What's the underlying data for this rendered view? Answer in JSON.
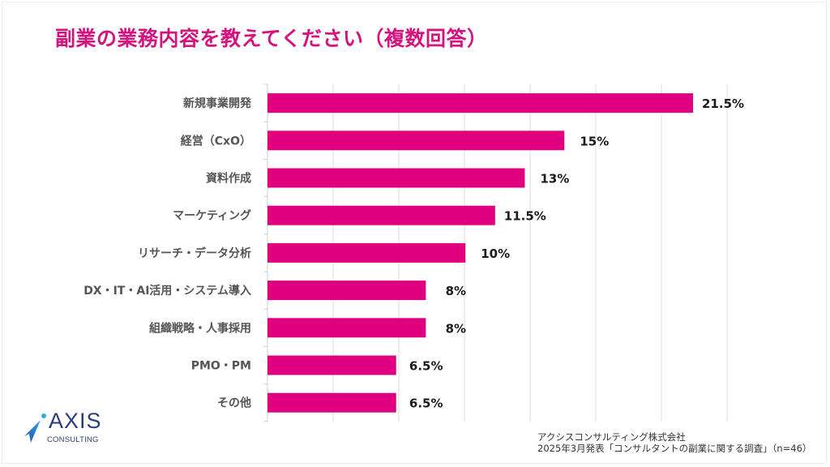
{
  "title": "副業の業務内容を教えてください（複数回答）",
  "colors": {
    "title": "#d6127f",
    "bar": "#e0007f",
    "grid": "#dcdcdc",
    "logo_text": "#2a3e78",
    "logo_mark": "#1e6fc8"
  },
  "chart_data": {
    "type": "bar",
    "orientation": "horizontal",
    "title": "副業の業務内容を教えてください（複数回答）",
    "xlabel": "",
    "ylabel": "",
    "grid": true,
    "xlim": [
      0,
      26.4
    ],
    "categories": [
      "新規事業開発",
      "経営（CxO）",
      "資料作成",
      "マーケティング",
      "リサーチ・データ分析",
      "DX・IT・AI活用・システム導入",
      "組織戦略・人事採用",
      "PMO・PM",
      "その他"
    ],
    "values": [
      21.5,
      15,
      13,
      11.5,
      10,
      8,
      8,
      6.5,
      6.5
    ],
    "value_labels": [
      "21.5%",
      "15%",
      "13%",
      "11.5%",
      "10%",
      "8%",
      "8%",
      "6.5%",
      "6.5%"
    ],
    "unit": "%"
  },
  "logo": {
    "name": "AXIS",
    "sub": "CONSULTING"
  },
  "source": {
    "line1": "アクシスコンサルティング株式会社",
    "line2": "2025年3月発表「コンサルタントの副業に関する調査」（n=46）"
  }
}
